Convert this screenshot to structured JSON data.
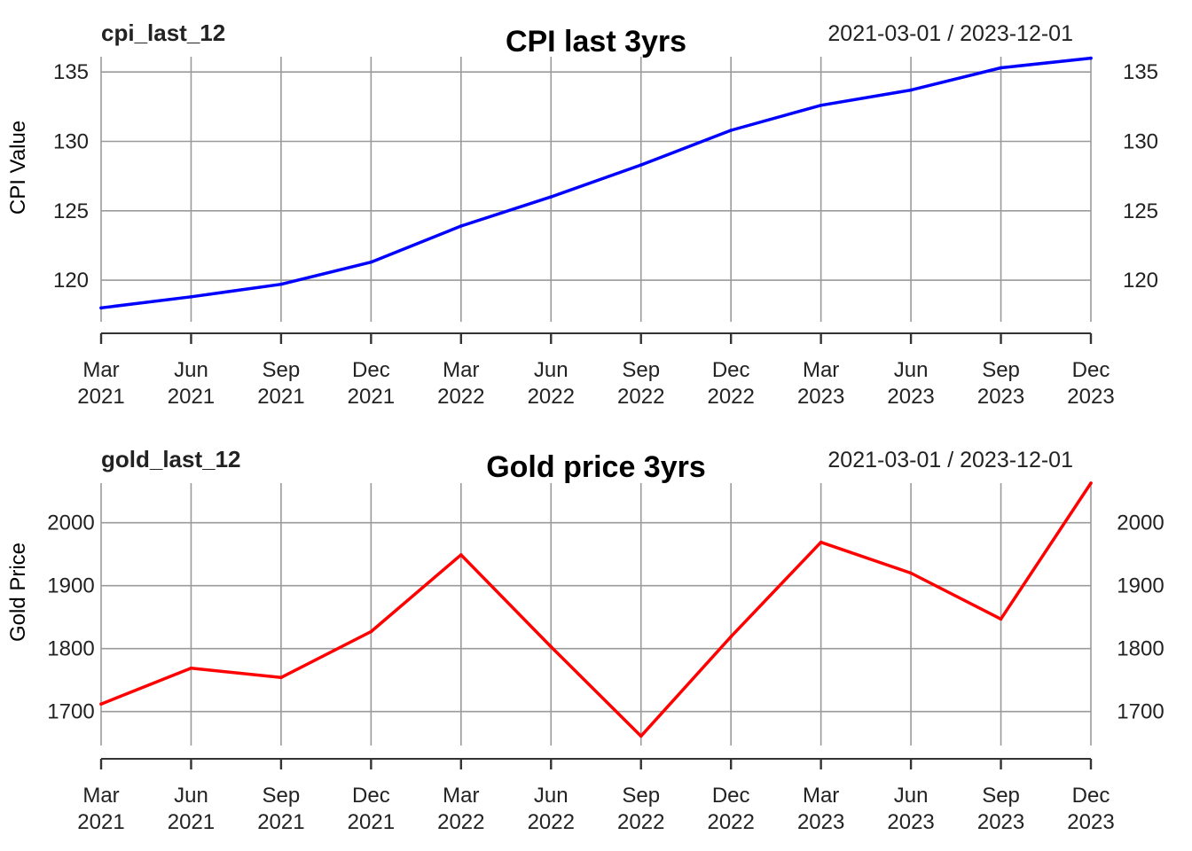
{
  "chart_data": [
    {
      "type": "line",
      "series_label": "cpi_last_12",
      "title": "CPI last 3yrs",
      "date_range": "2021-03-01 / 2023-12-01",
      "ylabel": "CPI Value",
      "xlabel": "",
      "color": "#0000ff",
      "grid": true,
      "x_ticks": [
        {
          "month": "Mar",
          "year": "2021"
        },
        {
          "month": "Jun",
          "year": "2021"
        },
        {
          "month": "Sep",
          "year": "2021"
        },
        {
          "month": "Dec",
          "year": "2021"
        },
        {
          "month": "Mar",
          "year": "2022"
        },
        {
          "month": "Jun",
          "year": "2022"
        },
        {
          "month": "Sep",
          "year": "2022"
        },
        {
          "month": "Dec",
          "year": "2022"
        },
        {
          "month": "Mar",
          "year": "2023"
        },
        {
          "month": "Jun",
          "year": "2023"
        },
        {
          "month": "Sep",
          "year": "2023"
        },
        {
          "month": "Dec",
          "year": "2023"
        }
      ],
      "x": [
        "2021-03-01",
        "2021-06-01",
        "2021-09-01",
        "2021-12-01",
        "2022-03-01",
        "2022-06-01",
        "2022-09-01",
        "2022-12-01",
        "2023-03-01",
        "2023-06-01",
        "2023-09-01",
        "2023-12-01"
      ],
      "values": [
        118.0,
        118.8,
        119.7,
        121.3,
        123.9,
        126.0,
        128.3,
        130.8,
        132.6,
        133.7,
        135.3,
        136.0
      ],
      "yticks": [
        120,
        125,
        130,
        135
      ],
      "ylim": [
        117.0,
        136.1
      ]
    },
    {
      "type": "line",
      "series_label": "gold_last_12",
      "title": "Gold price 3yrs",
      "date_range": "2021-03-01 / 2023-12-01",
      "ylabel": "Gold Price",
      "xlabel": "",
      "color": "#ff0000",
      "grid": true,
      "x_ticks": [
        {
          "month": "Mar",
          "year": "2021"
        },
        {
          "month": "Jun",
          "year": "2021"
        },
        {
          "month": "Sep",
          "year": "2021"
        },
        {
          "month": "Dec",
          "year": "2021"
        },
        {
          "month": "Mar",
          "year": "2022"
        },
        {
          "month": "Jun",
          "year": "2022"
        },
        {
          "month": "Sep",
          "year": "2022"
        },
        {
          "month": "Dec",
          "year": "2022"
        },
        {
          "month": "Mar",
          "year": "2023"
        },
        {
          "month": "Jun",
          "year": "2023"
        },
        {
          "month": "Sep",
          "year": "2023"
        },
        {
          "month": "Dec",
          "year": "2023"
        }
      ],
      "x": [
        "2021-03-01",
        "2021-06-01",
        "2021-09-01",
        "2021-12-01",
        "2022-03-01",
        "2022-06-01",
        "2022-09-01",
        "2022-12-01",
        "2023-03-01",
        "2023-06-01",
        "2023-09-01",
        "2023-12-01"
      ],
      "values": [
        1712,
        1769,
        1754,
        1827,
        1949,
        1803,
        1661,
        1819,
        1969,
        1920,
        1847,
        2063
      ],
      "yticks": [
        1700,
        1800,
        1900,
        2000
      ],
      "ylim": [
        1646,
        2063
      ]
    }
  ]
}
